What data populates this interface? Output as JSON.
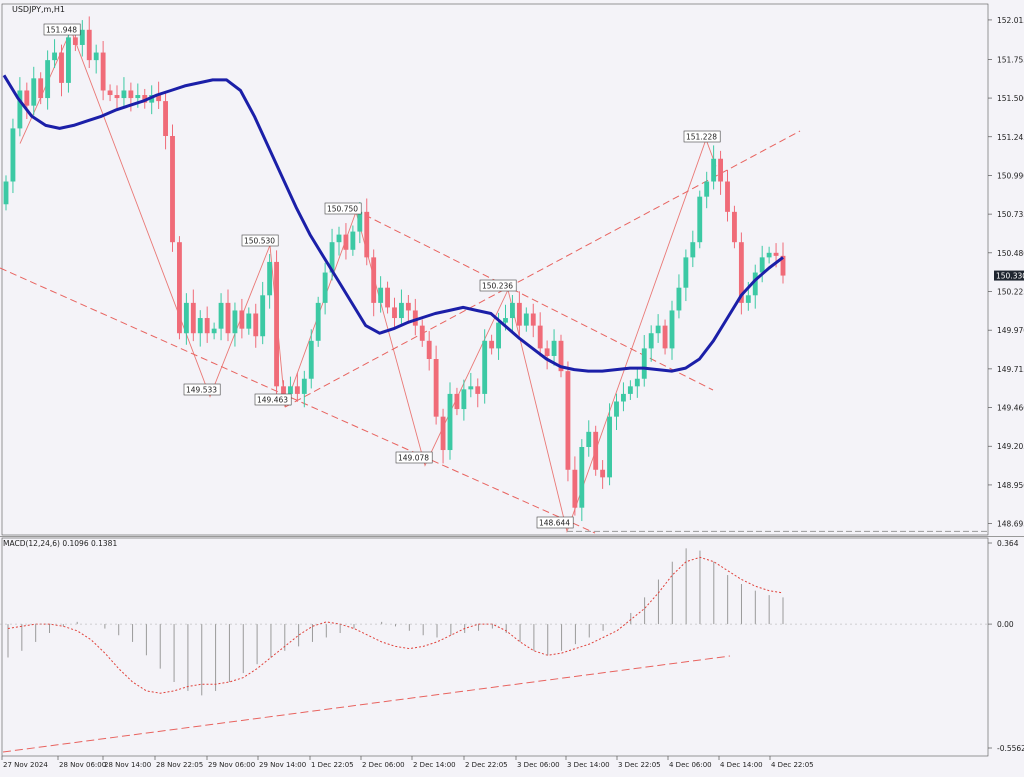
{
  "symbol_label": "USDJPY,m,H1",
  "indicator_label": "MACD(12,24,6) 0.1096 0.1381",
  "colors": {
    "background": "#f4f3f8",
    "bull": "#3cc9a4",
    "bear": "#f06b78",
    "ma_line": "#1b1fa8",
    "trend": "#e8635f",
    "macd_signal": "#e0413a",
    "histogram": "#9a9a9a",
    "price_tag_bg": "#1f2530",
    "price_tag_text": "#ffffff"
  },
  "current_price": "150.330",
  "price_axis": {
    "ticks": [
      "152.015",
      "151.755",
      "151.500",
      "151.245",
      "150.990",
      "150.735",
      "150.480",
      "150.225",
      "149.970",
      "149.715",
      "149.460",
      "149.205",
      "148.950",
      "148.695"
    ],
    "values": [
      152.015,
      151.755,
      151.5,
      151.245,
      150.99,
      150.735,
      150.48,
      150.225,
      149.97,
      149.715,
      149.46,
      149.205,
      148.95,
      148.695
    ]
  },
  "macd_axis": {
    "ticks": [
      "0.364",
      "0.00",
      "-0.5562"
    ],
    "values": [
      0.364,
      0,
      -0.5562
    ]
  },
  "time_axis": [
    "27 Nov 2024",
    "28 Nov 06:00",
    "28 Nov 14:00",
    "28 Nov 22:05",
    "29 Nov 06:00",
    "29 Nov 14:00",
    "1 Dec 22:05",
    "2 Dec 06:00",
    "2 Dec 14:00",
    "2 Dec 22:05",
    "3 Dec 06:00",
    "3 Dec 14:00",
    "3 Dec 22:05",
    "4 Dec 06:00",
    "4 Dec 14:00",
    "4 Dec 22:05"
  ],
  "chart_data": {
    "type": "candlestick",
    "symbol": "USDJPY",
    "timeframe": "H1",
    "swing_points": [
      {
        "label": "151.948",
        "value": 151.948,
        "time": "28 Nov 06:00"
      },
      {
        "label": "149.533",
        "value": 149.533,
        "time": "29 Nov 06:00"
      },
      {
        "label": "150.530",
        "value": 150.53,
        "time": "29 Nov 14:00"
      },
      {
        "label": "149.463",
        "value": 149.463,
        "time": "29 Nov 14:00"
      },
      {
        "label": "150.750",
        "value": 150.75,
        "time": "1 Dec 22:05"
      },
      {
        "label": "149.078",
        "value": 149.078,
        "time": "2 Dec 14:00"
      },
      {
        "label": "150.236",
        "value": 150.236,
        "time": "2 Dec 22:05"
      },
      {
        "label": "148.644",
        "value": 148.644,
        "time": "3 Dec 14:00"
      },
      {
        "label": "151.228",
        "value": 151.228,
        "time": "4 Dec 06:00"
      }
    ],
    "closes": [
      150.95,
      151.3,
      151.55,
      151.45,
      151.63,
      151.5,
      151.75,
      151.8,
      151.6,
      151.9,
      151.85,
      151.95,
      151.75,
      151.8,
      151.55,
      151.52,
      151.5,
      151.55,
      151.5,
      151.52,
      151.47,
      151.52,
      151.48,
      151.25,
      150.55,
      149.95,
      150.15,
      149.95,
      150.05,
      149.95,
      149.98,
      150.15,
      149.95,
      150.1,
      149.98,
      150.08,
      149.93,
      150.2,
      150.42,
      149.6,
      149.55,
      149.6,
      149.55,
      149.65,
      149.9,
      150.15,
      150.35,
      150.55,
      150.6,
      150.5,
      150.62,
      150.75,
      150.45,
      150.15,
      150.25,
      150.12,
      150.05,
      150.15,
      150.1,
      150.0,
      149.9,
      149.78,
      149.4,
      149.18,
      149.55,
      149.45,
      149.58,
      149.6,
      149.55,
      149.9,
      149.85,
      150.02,
      150.05,
      150.15,
      150.0,
      150.08,
      150.0,
      149.85,
      149.8,
      149.9,
      149.7,
      149.05,
      148.8,
      149.2,
      149.3,
      149.05,
      149.0,
      149.4,
      149.5,
      149.55,
      149.6,
      149.65,
      149.85,
      149.95,
      150.0,
      149.85,
      150.1,
      150.25,
      150.45,
      150.55,
      150.85,
      150.95,
      151.1,
      150.95,
      150.75,
      150.55,
      150.15,
      150.2,
      150.35,
      150.45,
      150.48,
      150.46,
      150.33
    ],
    "ma_values": [
      151.65,
      151.5,
      151.38,
      151.32,
      151.3,
      151.32,
      151.35,
      151.38,
      151.42,
      151.45,
      151.48,
      151.52,
      151.55,
      151.58,
      151.6,
      151.62,
      151.62,
      151.55,
      151.38,
      151.18,
      150.98,
      150.78,
      150.6,
      150.45,
      150.3,
      150.15,
      150.0,
      149.95,
      149.98,
      150.02,
      150.05,
      150.08,
      150.1,
      150.12,
      150.1,
      150.08,
      150.0,
      149.92,
      149.85,
      149.78,
      149.73,
      149.71,
      149.7,
      149.7,
      149.71,
      149.72,
      149.72,
      149.71,
      149.7,
      149.72,
      149.78,
      149.9,
      150.05,
      150.2,
      150.3,
      150.38,
      150.45
    ],
    "macd": {
      "name": "MACD(12,24,6)",
      "main": 0.1096,
      "signal": 0.1381,
      "ylim": [
        -0.5562,
        0.364
      ],
      "histogram": [
        -0.15,
        -0.12,
        -0.08,
        -0.04,
        -0.01,
        0.01,
        0.0,
        -0.02,
        -0.05,
        -0.08,
        -0.14,
        -0.2,
        -0.26,
        -0.3,
        -0.32,
        -0.3,
        -0.26,
        -0.22,
        -0.18,
        -0.15,
        -0.12,
        -0.1,
        -0.08,
        -0.06,
        -0.04,
        -0.02,
        0.0,
        0.01,
        -0.01,
        -0.03,
        -0.05,
        -0.06,
        -0.05,
        -0.04,
        -0.03,
        -0.02,
        -0.04,
        -0.08,
        -0.12,
        -0.14,
        -0.12,
        -0.09,
        -0.06,
        -0.03,
        0.0,
        0.05,
        0.12,
        0.2,
        0.28,
        0.34,
        0.33,
        0.28,
        0.22,
        0.18,
        0.15,
        0.13,
        0.12
      ],
      "signal_line": [
        -0.02,
        -0.01,
        0.0,
        0.0,
        -0.01,
        -0.03,
        -0.07,
        -0.13,
        -0.2,
        -0.26,
        -0.3,
        -0.31,
        -0.3,
        -0.28,
        -0.27,
        -0.27,
        -0.26,
        -0.24,
        -0.2,
        -0.15,
        -0.1,
        -0.05,
        -0.01,
        0.01,
        0.0,
        -0.02,
        -0.05,
        -0.08,
        -0.1,
        -0.11,
        -0.1,
        -0.08,
        -0.05,
        -0.02,
        0.0,
        0.0,
        -0.03,
        -0.08,
        -0.12,
        -0.14,
        -0.13,
        -0.11,
        -0.09,
        -0.06,
        -0.03,
        0.02,
        0.07,
        0.14,
        0.22,
        0.28,
        0.3,
        0.28,
        0.24,
        0.2,
        0.17,
        0.15,
        0.14
      ]
    }
  }
}
